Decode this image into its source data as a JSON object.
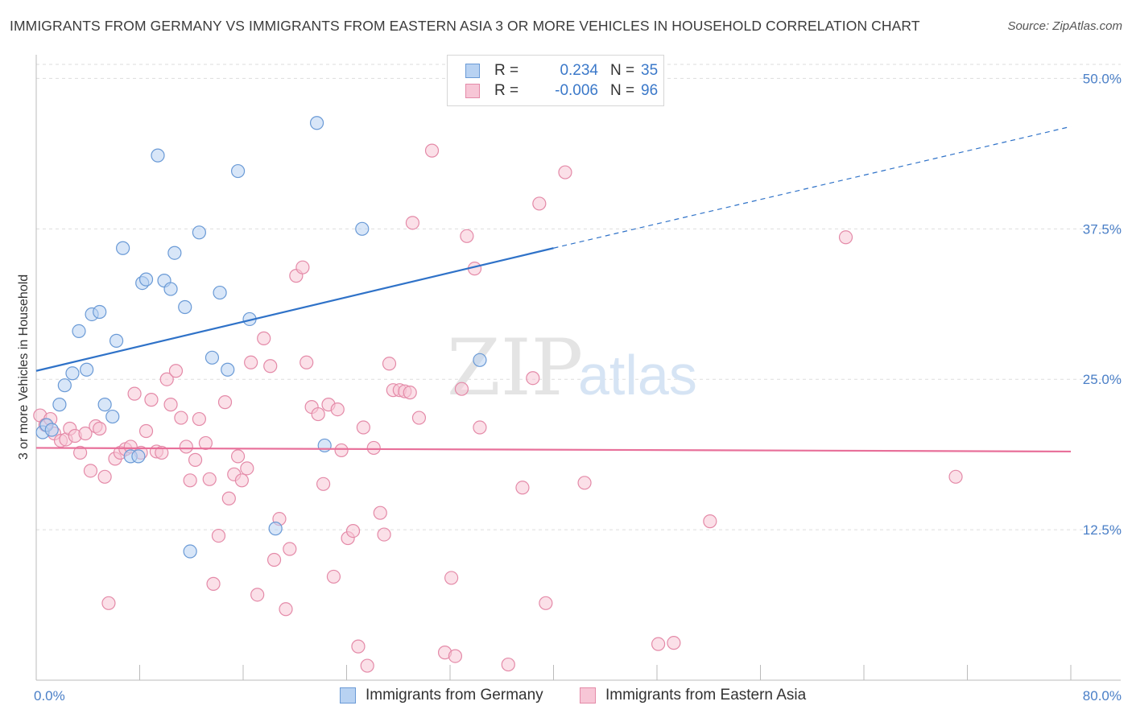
{
  "title": "IMMIGRANTS FROM GERMANY VS IMMIGRANTS FROM EASTERN ASIA 3 OR MORE VEHICLES IN HOUSEHOLD CORRELATION CHART",
  "source": "Source: ZipAtlas.com",
  "watermark": {
    "zip": "ZIP",
    "atlas": "atlas"
  },
  "legend_top": [
    {
      "r_label": "R =",
      "r_value": "0.234",
      "n_label": "N =",
      "n_value": "35"
    },
    {
      "r_label": "R =",
      "r_value": "-0.006",
      "n_label": "N =",
      "n_value": "96"
    }
  ],
  "legend_bottom": [
    "Immigrants from Germany",
    "Immigrants from Eastern Asia"
  ],
  "colors": {
    "germany_fill": "#b8d2f2",
    "germany_stroke": "#6a9ad6",
    "germany_line": "#2f72c8",
    "asia_fill": "#f7c6d6",
    "asia_stroke": "#e48aa8",
    "asia_line": "#e8709a",
    "grid": "#dddddd",
    "tick_text": "#4a7fc7"
  },
  "chart_data": {
    "type": "scatter",
    "title": "IMMIGRANTS FROM GERMANY VS IMMIGRANTS FROM EASTERN ASIA 3 OR MORE VEHICLES IN HOUSEHOLD CORRELATION CHART",
    "xlabel": "",
    "ylabel": "3 or more Vehicles in Household",
    "xlim": [
      0,
      80
    ],
    "ylim": [
      0,
      51.5
    ],
    "x_tick_labels": [
      "0.0%",
      "80.0%"
    ],
    "y_ticks": [
      12.5,
      25.0,
      37.5,
      50.0
    ],
    "y_tick_labels": [
      "12.5%",
      "25.0%",
      "37.5%",
      "50.0%"
    ],
    "grid": true,
    "legend_position": "top-center",
    "series": [
      {
        "name": "Immigrants from Germany",
        "r": 0.234,
        "n": 35,
        "trend": {
          "x0": 0,
          "y0": 25.7,
          "x1": 40,
          "y1": 35.9,
          "dash_to_x": 80,
          "dash_to_y": 46.0
        },
        "points": [
          [
            0.5,
            20.6
          ],
          [
            0.8,
            21.2
          ],
          [
            1.2,
            20.8
          ],
          [
            1.8,
            22.9
          ],
          [
            2.2,
            24.5
          ],
          [
            2.8,
            25.5
          ],
          [
            3.3,
            29.0
          ],
          [
            3.9,
            25.8
          ],
          [
            4.3,
            30.4
          ],
          [
            4.9,
            30.6
          ],
          [
            5.3,
            22.9
          ],
          [
            5.9,
            21.9
          ],
          [
            6.2,
            28.2
          ],
          [
            6.7,
            35.9
          ],
          [
            7.3,
            18.6
          ],
          [
            7.9,
            18.6
          ],
          [
            8.2,
            33.0
          ],
          [
            8.5,
            33.3
          ],
          [
            9.4,
            43.6
          ],
          [
            9.9,
            33.2
          ],
          [
            10.4,
            32.5
          ],
          [
            10.7,
            35.5
          ],
          [
            11.5,
            31.0
          ],
          [
            11.9,
            10.7
          ],
          [
            12.6,
            37.2
          ],
          [
            13.6,
            26.8
          ],
          [
            14.2,
            32.2
          ],
          [
            14.8,
            25.8
          ],
          [
            15.6,
            42.3
          ],
          [
            16.5,
            30.0
          ],
          [
            18.5,
            12.6
          ],
          [
            21.7,
            46.3
          ],
          [
            22.3,
            19.5
          ],
          [
            25.2,
            37.5
          ],
          [
            34.3,
            26.6
          ]
        ]
      },
      {
        "name": "Immigrants from Eastern Asia",
        "r": -0.006,
        "n": 96,
        "trend": {
          "x0": 0,
          "y0": 19.3,
          "x1": 80,
          "y1": 19.0
        },
        "points": [
          [
            0.3,
            22.0
          ],
          [
            0.7,
            21.2
          ],
          [
            1.1,
            21.7
          ],
          [
            1.4,
            20.5
          ],
          [
            1.9,
            19.9
          ],
          [
            2.3,
            20.0
          ],
          [
            2.6,
            20.9
          ],
          [
            3.0,
            20.3
          ],
          [
            3.4,
            18.9
          ],
          [
            3.8,
            20.5
          ],
          [
            4.2,
            17.4
          ],
          [
            4.6,
            21.1
          ],
          [
            4.9,
            20.9
          ],
          [
            5.3,
            16.9
          ],
          [
            5.6,
            6.4
          ],
          [
            6.1,
            18.4
          ],
          [
            6.5,
            18.9
          ],
          [
            6.9,
            19.2
          ],
          [
            7.3,
            19.4
          ],
          [
            7.6,
            23.8
          ],
          [
            8.1,
            18.9
          ],
          [
            8.5,
            20.7
          ],
          [
            8.9,
            23.3
          ],
          [
            9.3,
            19.0
          ],
          [
            9.7,
            18.9
          ],
          [
            10.1,
            25.0
          ],
          [
            10.4,
            22.9
          ],
          [
            10.8,
            25.7
          ],
          [
            11.2,
            21.8
          ],
          [
            11.6,
            19.4
          ],
          [
            11.9,
            16.6
          ],
          [
            12.3,
            18.3
          ],
          [
            12.6,
            21.7
          ],
          [
            13.1,
            19.7
          ],
          [
            13.4,
            16.7
          ],
          [
            13.7,
            8.0
          ],
          [
            14.1,
            12.0
          ],
          [
            14.6,
            23.1
          ],
          [
            14.9,
            15.1
          ],
          [
            15.3,
            17.1
          ],
          [
            15.6,
            18.6
          ],
          [
            15.9,
            16.6
          ],
          [
            16.3,
            17.6
          ],
          [
            16.6,
            26.4
          ],
          [
            17.1,
            7.1
          ],
          [
            17.6,
            28.4
          ],
          [
            18.1,
            26.1
          ],
          [
            18.4,
            10.0
          ],
          [
            18.8,
            13.4
          ],
          [
            19.3,
            5.9
          ],
          [
            19.6,
            10.9
          ],
          [
            20.1,
            33.6
          ],
          [
            20.6,
            34.3
          ],
          [
            20.9,
            26.4
          ],
          [
            21.3,
            22.7
          ],
          [
            21.8,
            22.1
          ],
          [
            22.2,
            16.3
          ],
          [
            22.6,
            22.9
          ],
          [
            23.0,
            8.6
          ],
          [
            23.3,
            22.5
          ],
          [
            23.6,
            19.1
          ],
          [
            24.1,
            11.8
          ],
          [
            24.5,
            12.4
          ],
          [
            24.9,
            2.8
          ],
          [
            25.3,
            21.0
          ],
          [
            25.6,
            1.2
          ],
          [
            26.1,
            19.3
          ],
          [
            26.6,
            13.9
          ],
          [
            26.9,
            12.1
          ],
          [
            27.3,
            26.3
          ],
          [
            27.6,
            24.1
          ],
          [
            28.1,
            24.1
          ],
          [
            28.5,
            24.0
          ],
          [
            28.9,
            23.9
          ],
          [
            29.1,
            38.0
          ],
          [
            29.6,
            21.8
          ],
          [
            30.6,
            44.0
          ],
          [
            31.6,
            2.3
          ],
          [
            32.1,
            8.5
          ],
          [
            32.4,
            2.0
          ],
          [
            32.9,
            24.2
          ],
          [
            33.3,
            36.9
          ],
          [
            33.9,
            34.2
          ],
          [
            34.3,
            21.0
          ],
          [
            36.5,
            1.3
          ],
          [
            37.6,
            16.0
          ],
          [
            38.4,
            25.1
          ],
          [
            38.9,
            39.6
          ],
          [
            39.4,
            6.4
          ],
          [
            40.9,
            42.2
          ],
          [
            42.4,
            16.4
          ],
          [
            48.1,
            3.0
          ],
          [
            49.3,
            3.1
          ],
          [
            52.1,
            13.2
          ],
          [
            62.6,
            36.8
          ],
          [
            71.1,
            16.9
          ]
        ]
      }
    ]
  }
}
